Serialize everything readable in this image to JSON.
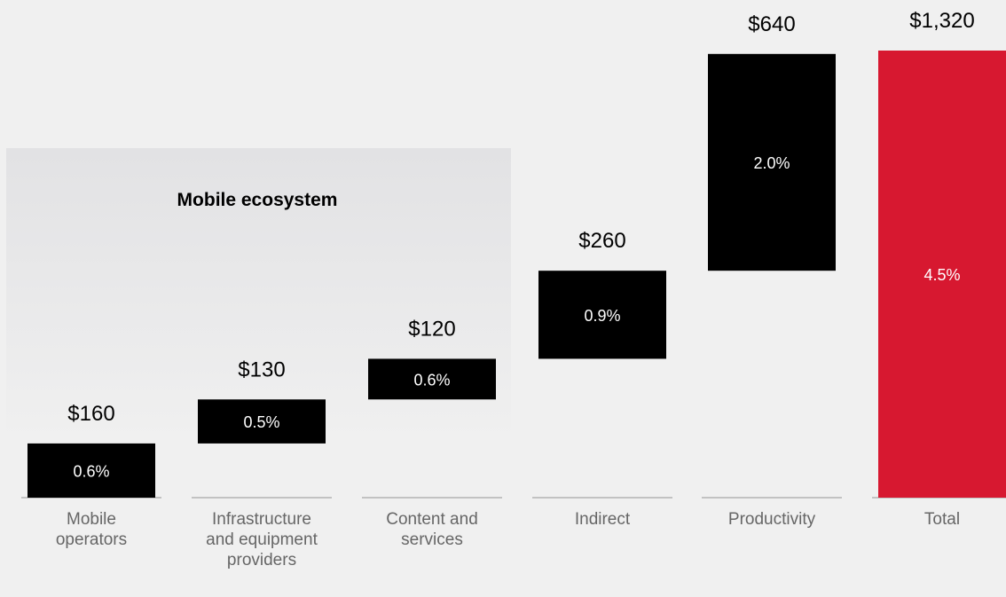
{
  "chart_data": {
    "type": "bar",
    "subtype": "waterfall",
    "title": "",
    "xlabel": "",
    "ylabel": "",
    "group": {
      "label": "Mobile ecosystem",
      "members": [
        "Mobile operators",
        "Infrastructure and equipment providers",
        "Content and services"
      ]
    },
    "categories": [
      "Mobile operators",
      "Infrastructure and equipment providers",
      "Content and services",
      "Indirect",
      "Productivity",
      "Total"
    ],
    "values": [
      160,
      130,
      120,
      260,
      640,
      1320
    ],
    "value_labels": [
      "$160",
      "$130",
      "$120",
      "$260",
      "$640",
      "$1,320"
    ],
    "percent_labels": [
      "0.6%",
      "0.5%",
      "0.6%",
      "0.9%",
      "2.0%",
      "4.5%"
    ],
    "ylim": [
      0,
      1320
    ],
    "grid": false,
    "legend": "none",
    "colors": {
      "bar": "#000000",
      "total": "#d71830",
      "total_label": "#d71830",
      "value_label": "#000000",
      "percent_label": "#ffffff",
      "category_label": "#666666",
      "baseline": "#b3b3b3",
      "background": "#f0f0f0",
      "group_panel_top": "#e2e2e4",
      "group_panel_bottom": "#f0f0f0"
    }
  }
}
